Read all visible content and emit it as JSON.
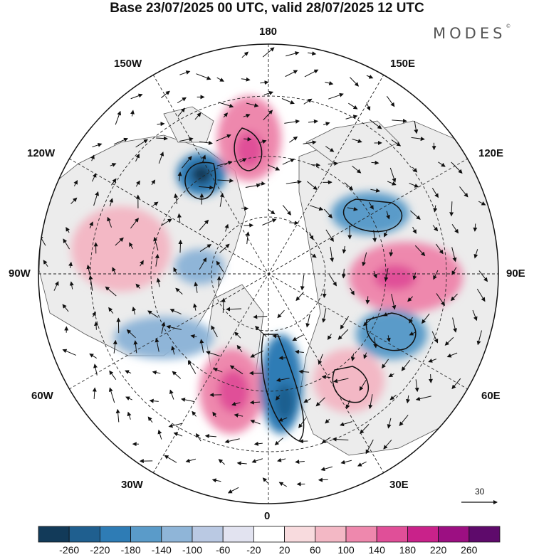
{
  "header": {
    "title": "Base 23/07/2025 00 UTC, valid 28/07/2025 12 UTC",
    "brand": "MODES",
    "brand_mark": "©"
  },
  "map": {
    "projection": "north polar stereographic",
    "longitude_labels": {
      "top": "180",
      "bottom": "0",
      "left": "90W",
      "right": "90E",
      "upper_left": "150W",
      "upper_right": "150E",
      "mid_upper_left": "120W",
      "mid_upper_right": "120E",
      "mid_lower_left": "60W",
      "mid_lower_right": "60E",
      "lower_left": "30W",
      "lower_right": "30E"
    },
    "vector_scale_label": "30"
  },
  "colorbar": {
    "labels": [
      "-260",
      "-220",
      "-180",
      "-140",
      "-100",
      "-60",
      "-20",
      "20",
      "60",
      "100",
      "140",
      "180",
      "220",
      "260"
    ],
    "colors": [
      "#123a59",
      "#1f5f8f",
      "#2e7cb5",
      "#5a9bc9",
      "#8fb5d8",
      "#bac9e3",
      "#e2e3f0",
      "#ffffff",
      "#f8dbde",
      "#f3b8c5",
      "#ee88ad",
      "#e04f98",
      "#c9228a",
      "#9c0f82",
      "#5e0a6b"
    ]
  }
}
